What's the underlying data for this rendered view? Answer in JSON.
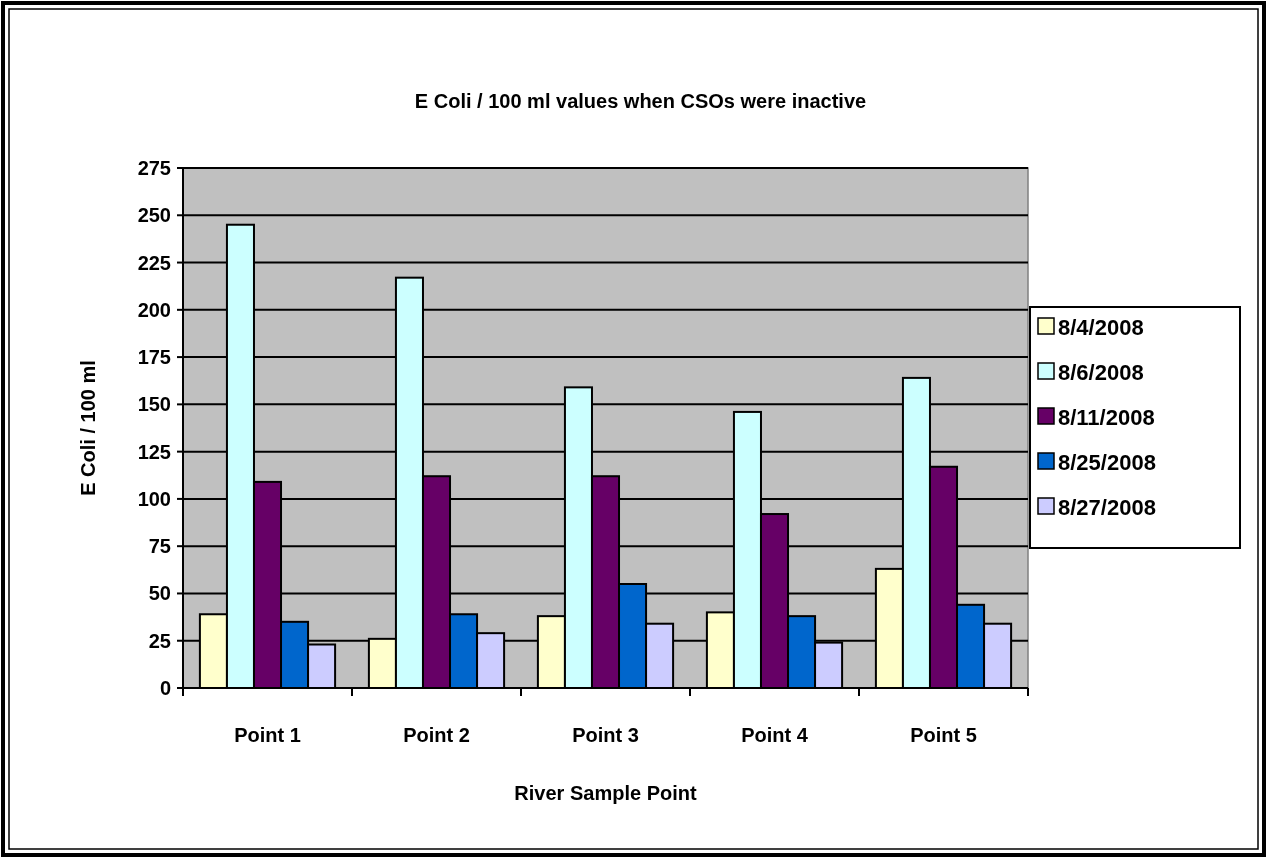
{
  "chart_data": {
    "type": "bar",
    "title": "E Coli / 100 ml values when CSOs were inactive",
    "xlabel": "River Sample Point",
    "ylabel": "E Coli / 100 ml",
    "categories": [
      "Point 1",
      "Point 2",
      "Point 3",
      "Point 4",
      "Point 5"
    ],
    "series": [
      {
        "name": "8/4/2008",
        "color": "#ffffcc",
        "values": [
          39,
          26,
          38,
          40,
          63
        ]
      },
      {
        "name": "8/6/2008",
        "color": "#ccffff",
        "values": [
          245,
          217,
          159,
          146,
          164
        ]
      },
      {
        "name": "8/11/2008",
        "color": "#660066",
        "values": [
          109,
          112,
          112,
          92,
          117
        ]
      },
      {
        "name": "8/25/2008",
        "color": "#0066cc",
        "values": [
          35,
          39,
          55,
          38,
          44
        ]
      },
      {
        "name": "8/27/2008",
        "color": "#ccccff",
        "values": [
          23,
          29,
          34,
          24,
          34
        ]
      }
    ],
    "ylim": [
      0,
      275
    ],
    "yticks": [
      0,
      25,
      50,
      75,
      100,
      125,
      150,
      175,
      200,
      225,
      250,
      275
    ],
    "grid": "y",
    "legend": "right"
  }
}
